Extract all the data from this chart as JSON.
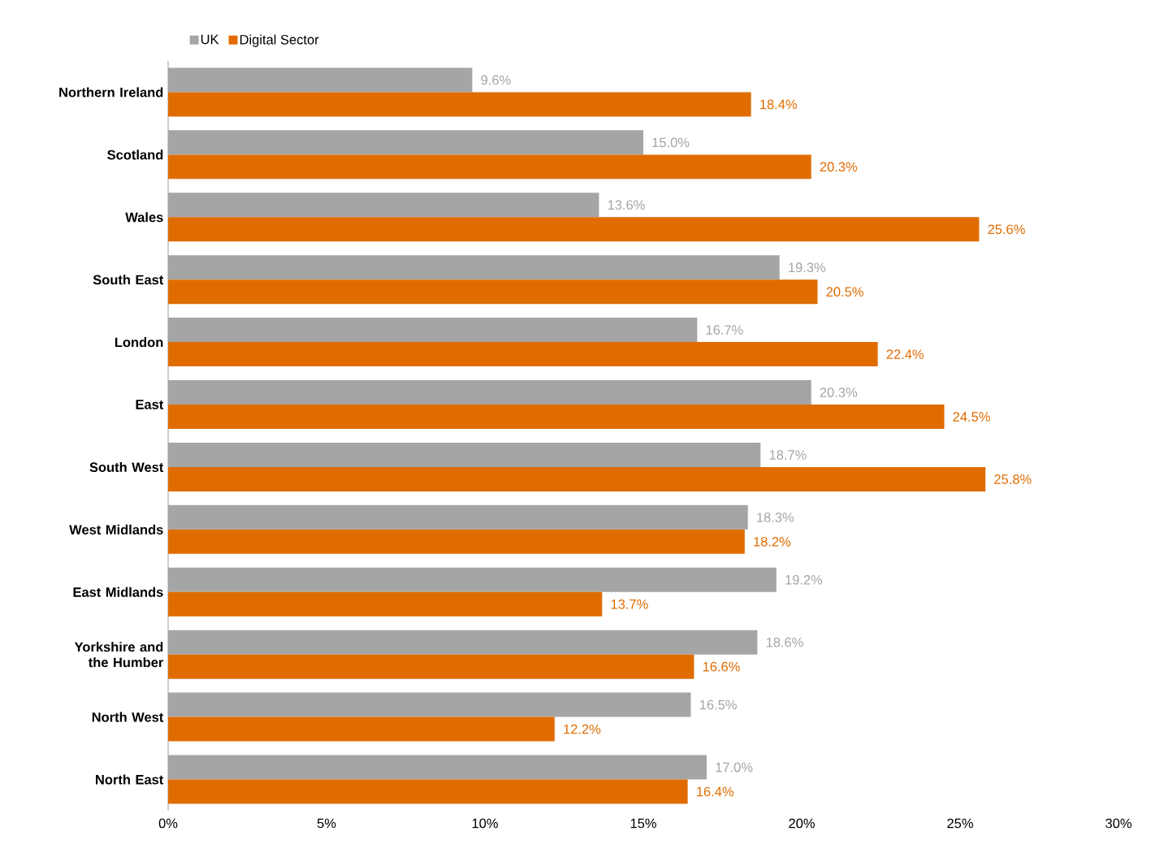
{
  "chart_data": {
    "type": "bar",
    "orientation": "horizontal",
    "categories": [
      "Northern Ireland",
      "Scotland",
      "Wales",
      "South East",
      "London",
      "East",
      "South West",
      "West Midlands",
      "East Midlands",
      "Yorkshire and the Humber",
      "North West",
      "North East"
    ],
    "series": [
      {
        "name": "UK",
        "color": "#a5a5a5",
        "values": [
          9.6,
          15.0,
          13.6,
          19.3,
          16.7,
          20.3,
          18.7,
          18.3,
          19.2,
          18.6,
          16.5,
          17.0
        ],
        "value_labels": [
          "9.6%",
          "15.0%",
          "13.6%",
          "19.3%",
          "16.7%",
          "20.3%",
          "18.7%",
          "18.3%",
          "19.2%",
          "18.6%",
          "16.5%",
          "17.0%"
        ]
      },
      {
        "name": "Digital Sector",
        "color": "#e06c00",
        "values": [
          18.4,
          20.3,
          25.6,
          20.5,
          22.4,
          24.5,
          25.8,
          18.2,
          13.7,
          16.6,
          12.2,
          16.4
        ],
        "value_labels": [
          "18.4%",
          "20.3%",
          "25.6%",
          "20.5%",
          "22.4%",
          "24.5%",
          "25.8%",
          "18.2%",
          "13.7%",
          "16.6%",
          "12.2%",
          "16.4%"
        ]
      }
    ],
    "xlim": [
      0,
      30
    ],
    "xticks": [
      {
        "value": 0,
        "label": "0%"
      },
      {
        "value": 5,
        "label": "5%"
      },
      {
        "value": 10,
        "label": "10%"
      },
      {
        "value": 15,
        "label": "15%"
      },
      {
        "value": 20,
        "label": "20%"
      },
      {
        "value": 25,
        "label": "25%"
      },
      {
        "value": 30,
        "label": "30%"
      }
    ],
    "grid": false,
    "legend": "top"
  }
}
